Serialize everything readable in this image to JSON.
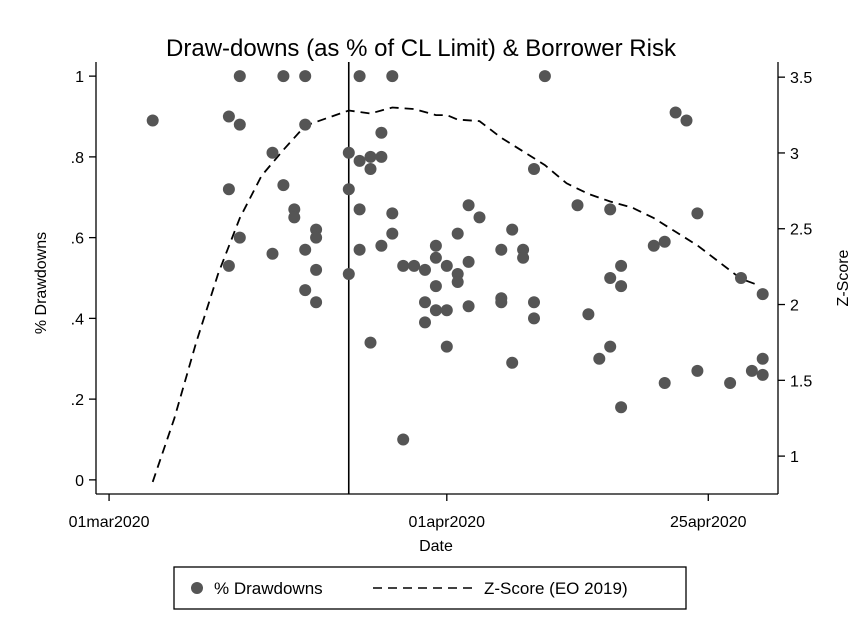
{
  "chart_data": {
    "type": "scatter",
    "title": "Draw-downs (as % of CL Limit) & Borrower Risk",
    "xlabel": "Date",
    "ylabel_left": "% Drawdowns",
    "ylabel_right": "Z-Score",
    "x_ticks": [
      {
        "label": "01mar2020",
        "day": 0
      },
      {
        "label": "01apr2020",
        "day": 31
      },
      {
        "label": "25apr2020",
        "day": 55
      }
    ],
    "xlim_days": [
      -1.2,
      61.4
    ],
    "y_left_ticks": [
      {
        "label": "0",
        "value": 0
      },
      {
        "label": ".2",
        "value": 0.2
      },
      {
        "label": ".4",
        "value": 0.4
      },
      {
        "label": ".6",
        "value": 0.6
      },
      {
        "label": ".8",
        "value": 0.8
      },
      {
        "label": "1",
        "value": 1.0
      }
    ],
    "ylim_left": [
      -0.035,
      1.035
    ],
    "y_right_ticks": [
      {
        "label": "1",
        "value": 1
      },
      {
        "label": "1.5",
        "value": 1.5
      },
      {
        "label": "2",
        "value": 2
      },
      {
        "label": "2.5",
        "value": 2.5
      },
      {
        "label": "3",
        "value": 3
      },
      {
        "label": "3.5",
        "value": 3.5
      }
    ],
    "ylim_right": [
      0.75,
      3.6
    ],
    "vline_day": 22,
    "grid": false,
    "legend_position": "bottom",
    "series": [
      {
        "name": "% Drawdowns",
        "type": "scatter",
        "axis": "left",
        "color": "#555555",
        "points": [
          [
            4,
            0.89
          ],
          [
            11,
            0.9
          ],
          [
            11,
            0.72
          ],
          [
            11,
            0.53
          ],
          [
            12,
            1.0
          ],
          [
            12,
            0.88
          ],
          [
            12,
            0.6
          ],
          [
            15,
            0.81
          ],
          [
            15,
            0.56
          ],
          [
            16,
            1.0
          ],
          [
            16,
            0.73
          ],
          [
            17,
            0.67
          ],
          [
            17,
            0.65
          ],
          [
            18,
            1.0
          ],
          [
            18,
            0.88
          ],
          [
            18,
            0.57
          ],
          [
            18,
            0.47
          ],
          [
            19,
            0.62
          ],
          [
            19,
            0.6
          ],
          [
            19,
            0.52
          ],
          [
            19,
            0.44
          ],
          [
            22,
            0.81
          ],
          [
            22,
            0.72
          ],
          [
            22,
            0.51
          ],
          [
            23,
            1.0
          ],
          [
            23,
            0.79
          ],
          [
            23,
            0.67
          ],
          [
            23,
            0.57
          ],
          [
            24,
            0.8
          ],
          [
            24,
            0.77
          ],
          [
            24,
            0.34
          ],
          [
            25,
            0.86
          ],
          [
            25,
            0.8
          ],
          [
            25,
            0.58
          ],
          [
            26,
            1.0
          ],
          [
            26,
            0.66
          ],
          [
            26,
            0.61
          ],
          [
            27,
            0.53
          ],
          [
            27,
            0.1
          ],
          [
            28,
            0.53
          ],
          [
            29,
            0.52
          ],
          [
            29,
            0.44
          ],
          [
            29,
            0.39
          ],
          [
            30,
            0.58
          ],
          [
            30,
            0.55
          ],
          [
            30,
            0.48
          ],
          [
            30,
            0.42
          ],
          [
            31,
            0.53
          ],
          [
            31,
            0.42
          ],
          [
            31,
            0.33
          ],
          [
            32,
            0.61
          ],
          [
            32,
            0.51
          ],
          [
            32,
            0.49
          ],
          [
            33,
            0.68
          ],
          [
            33,
            0.54
          ],
          [
            33,
            0.43
          ],
          [
            34,
            0.65
          ],
          [
            36,
            0.57
          ],
          [
            36,
            0.45
          ],
          [
            36,
            0.44
          ],
          [
            37,
            0.62
          ],
          [
            37,
            0.29
          ],
          [
            38,
            0.57
          ],
          [
            38,
            0.55
          ],
          [
            39,
            0.77
          ],
          [
            39,
            0.44
          ],
          [
            39,
            0.4
          ],
          [
            40,
            1.0
          ],
          [
            43,
            0.68
          ],
          [
            44,
            0.41
          ],
          [
            45,
            0.3
          ],
          [
            46,
            0.67
          ],
          [
            46,
            0.5
          ],
          [
            46,
            0.33
          ],
          [
            47,
            0.53
          ],
          [
            47,
            0.48
          ],
          [
            47,
            0.18
          ],
          [
            50,
            0.58
          ],
          [
            51,
            0.59
          ],
          [
            51,
            0.24
          ],
          [
            52,
            0.91
          ],
          [
            53,
            0.89
          ],
          [
            54,
            0.66
          ],
          [
            54,
            0.27
          ],
          [
            57,
            0.24
          ],
          [
            58,
            0.5
          ],
          [
            59,
            0.27
          ],
          [
            60,
            0.46
          ],
          [
            60,
            0.3
          ],
          [
            60,
            0.26
          ]
        ]
      },
      {
        "name": "Z-Score (EO 2019)",
        "type": "line",
        "axis": "right",
        "style": "dashed",
        "color": "#000000",
        "points": [
          [
            4,
            0.83
          ],
          [
            6,
            1.25
          ],
          [
            8,
            1.75
          ],
          [
            10,
            2.2
          ],
          [
            12,
            2.57
          ],
          [
            14,
            2.85
          ],
          [
            16,
            3.02
          ],
          [
            18,
            3.18
          ],
          [
            20,
            3.23
          ],
          [
            22,
            3.28
          ],
          [
            24,
            3.26
          ],
          [
            26,
            3.3
          ],
          [
            28,
            3.29
          ],
          [
            30,
            3.25
          ],
          [
            31,
            3.25
          ],
          [
            32,
            3.22
          ],
          [
            34,
            3.21
          ],
          [
            36,
            3.1
          ],
          [
            38,
            3.01
          ],
          [
            40,
            2.92
          ],
          [
            42,
            2.8
          ],
          [
            44,
            2.73
          ],
          [
            46,
            2.68
          ],
          [
            48,
            2.64
          ],
          [
            50,
            2.57
          ],
          [
            52,
            2.48
          ],
          [
            54,
            2.39
          ],
          [
            56,
            2.28
          ],
          [
            58,
            2.17
          ],
          [
            59.5,
            2.13
          ]
        ]
      }
    ]
  },
  "legend": {
    "items": [
      {
        "label": "% Drawdowns",
        "marker": "dot"
      },
      {
        "label": "Z-Score (EO 2019)",
        "marker": "dash"
      }
    ]
  }
}
